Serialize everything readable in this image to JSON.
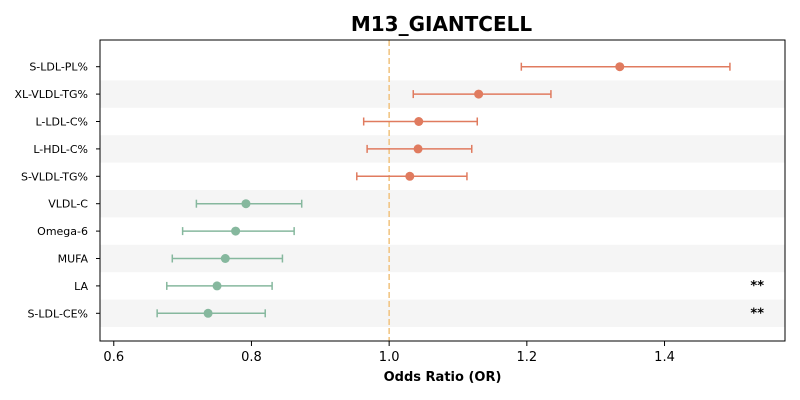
{
  "chart_data": {
    "type": "forest",
    "title": "M13_GIANTCELL",
    "xlabel": "Odds Ratio (OR)",
    "xlim": [
      0.58,
      1.575
    ],
    "x_ticks": [
      0.6,
      0.8,
      1.0,
      1.2,
      1.4
    ],
    "x_tick_labels": [
      "0.6",
      "0.8",
      "1.0",
      "1.2",
      "1.4"
    ],
    "reference_line": 1.0,
    "colors": {
      "increase": "#e07b5f",
      "decrease": "#86b89e",
      "reference": "#f1c27d",
      "band": "#f5f5f5"
    },
    "rows": [
      {
        "label": "S-LDL-PL%",
        "or": 1.335,
        "lower": 1.192,
        "upper": 1.495,
        "sig": ""
      },
      {
        "label": "XL-VLDL-TG%",
        "or": 1.13,
        "lower": 1.035,
        "upper": 1.235,
        "sig": ""
      },
      {
        "label": "L-LDL-C%",
        "or": 1.043,
        "lower": 0.963,
        "upper": 1.128,
        "sig": ""
      },
      {
        "label": "L-HDL-C%",
        "or": 1.042,
        "lower": 0.968,
        "upper": 1.12,
        "sig": ""
      },
      {
        "label": "S-VLDL-TG%",
        "or": 1.03,
        "lower": 0.953,
        "upper": 1.113,
        "sig": ""
      },
      {
        "label": "VLDL-C",
        "or": 0.792,
        "lower": 0.72,
        "upper": 0.873,
        "sig": ""
      },
      {
        "label": "Omega-6",
        "or": 0.777,
        "lower": 0.7,
        "upper": 0.862,
        "sig": ""
      },
      {
        "label": "MUFA",
        "or": 0.762,
        "lower": 0.685,
        "upper": 0.845,
        "sig": ""
      },
      {
        "label": "LA",
        "or": 0.75,
        "lower": 0.677,
        "upper": 0.83,
        "sig": "**"
      },
      {
        "label": "S-LDL-CE%",
        "or": 0.737,
        "lower": 0.663,
        "upper": 0.82,
        "sig": "**"
      }
    ]
  }
}
